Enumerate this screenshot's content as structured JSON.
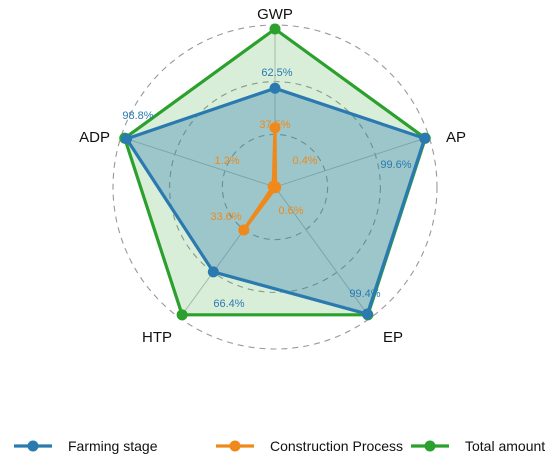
{
  "chart_data": {
    "type": "radar",
    "axes": [
      "GWP",
      "AP",
      "EP",
      "HTP",
      "ADP"
    ],
    "rmax": 100,
    "rings": [
      33.3,
      66.7,
      100
    ],
    "series": [
      {
        "name": "Farming stage",
        "color": "#2a7ab0",
        "values": [
          62.5,
          99.6,
          99.4,
          66.4,
          98.8
        ]
      },
      {
        "name": "Construction Process",
        "color": "#f0891b",
        "values": [
          37.5,
          0.4,
          0.6,
          33.6,
          1.2
        ]
      },
      {
        "name": "Total amount",
        "color": "#2ca02c",
        "values": [
          100,
          100,
          100,
          100,
          100
        ]
      }
    ],
    "percent_labels": {
      "Farming stage": [
        "62.5%",
        "99.6%",
        "99.4%",
        "66.4%",
        "98.8%"
      ],
      "Construction Process": [
        "37.5%",
        "0.4%",
        "0.6%",
        "33.6%",
        "1.2%"
      ]
    },
    "legend_position": "bottom"
  }
}
